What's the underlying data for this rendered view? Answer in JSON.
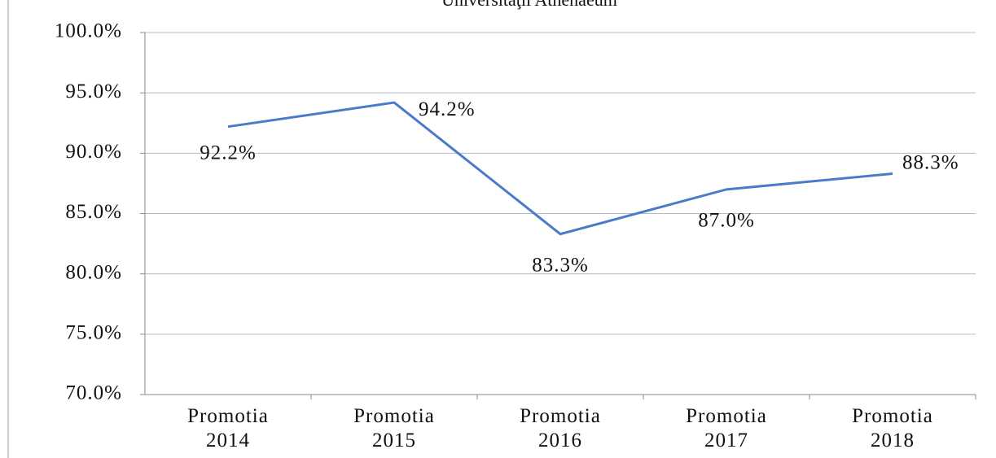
{
  "chart_data": {
    "type": "line",
    "title": "Universitaţii Athenaeum",
    "categories": [
      "Promotia 2014",
      "Promotia 2015",
      "Promotia 2016",
      "Promotia 2017",
      "Promotia 2018"
    ],
    "series": [
      {
        "name": "Promotia",
        "color": "#4a7bc8",
        "values": [
          92.2,
          94.2,
          83.3,
          87.0,
          88.3
        ],
        "value_labels": [
          "92.2%",
          "94.2%",
          "83.3%",
          "87.0%",
          "88.3%"
        ]
      }
    ],
    "ylim": [
      70,
      100
    ],
    "yticks": [
      {
        "value": 70,
        "label": "70.0%"
      },
      {
        "value": 75,
        "label": "75.0%"
      },
      {
        "value": 80,
        "label": "80.0%"
      },
      {
        "value": 85,
        "label": "85.0%"
      },
      {
        "value": 90,
        "label": "90.0%"
      },
      {
        "value": 95,
        "label": "95.0%"
      },
      {
        "value": 100,
        "label": "100.0%"
      }
    ],
    "grid": true
  }
}
